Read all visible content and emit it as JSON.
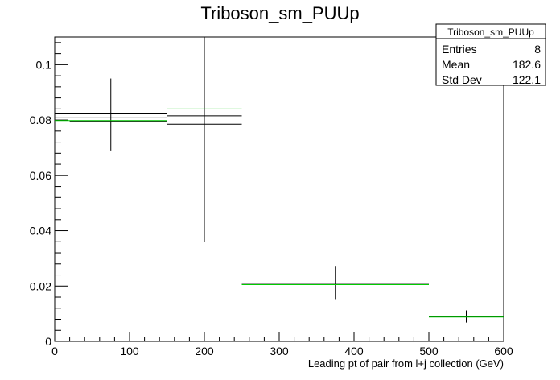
{
  "chart_data": {
    "type": "line",
    "title": "Triboson_sm_PUUp",
    "xlabel": "Leading pt of pair from l+j collection (GeV)",
    "ylabel": "",
    "xlim": [
      0,
      600
    ],
    "ylim": [
      0,
      0.11
    ],
    "x_ticks": [
      0,
      100,
      200,
      300,
      400,
      500,
      600
    ],
    "y_ticks": [
      0,
      0.02,
      0.04,
      0.06,
      0.08,
      0.1
    ],
    "x_tick_labels": [
      "0",
      "100",
      "200",
      "300",
      "400",
      "500",
      "600"
    ],
    "y_tick_labels": [
      "0",
      "0.02",
      "0.04",
      "0.06",
      "0.08",
      "0.1"
    ],
    "colors": {
      "nominal": "#000000",
      "variation": "#00cc00",
      "frame": "#000000"
    },
    "series": [
      {
        "points": [
          {
            "x": 75,
            "y": 0.0825,
            "xlow": 0,
            "xhigh": 150,
            "ylow": 0.069,
            "yhigh": 0.095
          },
          {
            "x": 200,
            "y": 0.0815,
            "xlow": 150,
            "xhigh": 250,
            "ylow": 0.036,
            "yhigh": 0.11
          },
          {
            "x": 375,
            "y": 0.021,
            "xlow": 250,
            "xhigh": 500,
            "ylow": 0.015,
            "yhigh": 0.027
          },
          {
            "x": 550,
            "y": 0.009,
            "xlow": 500,
            "xhigh": 600,
            "ylow": 0.0068,
            "yhigh": 0.0112
          }
        ]
      },
      {
        "points": [
          {
            "x": 75,
            "y": 0.0808,
            "xlow": 0,
            "xhigh": 150
          },
          {
            "x": 75,
            "y": 0.0795,
            "xlow": 20,
            "xhigh": 150
          },
          {
            "x": 200,
            "y": 0.0785,
            "xlow": 150,
            "xhigh": 250
          }
        ]
      },
      {
        "points": [
          {
            "x": 75,
            "y": 0.0798,
            "xlow": 0,
            "xhigh": 150
          },
          {
            "x": 200,
            "y": 0.084,
            "xlow": 150,
            "xhigh": 250
          },
          {
            "x": 375,
            "y": 0.0205,
            "xlow": 250,
            "xhigh": 500
          },
          {
            "x": 550,
            "y": 0.0088,
            "xlow": 500,
            "xhigh": 600
          }
        ]
      }
    ],
    "stats_box": {
      "title": "Triboson_sm_PUUp",
      "rows": [
        {
          "label": "Entries",
          "value": "8"
        },
        {
          "label": "Mean",
          "value": "182.6"
        },
        {
          "label": "Std Dev",
          "value": "122.1"
        }
      ]
    }
  }
}
